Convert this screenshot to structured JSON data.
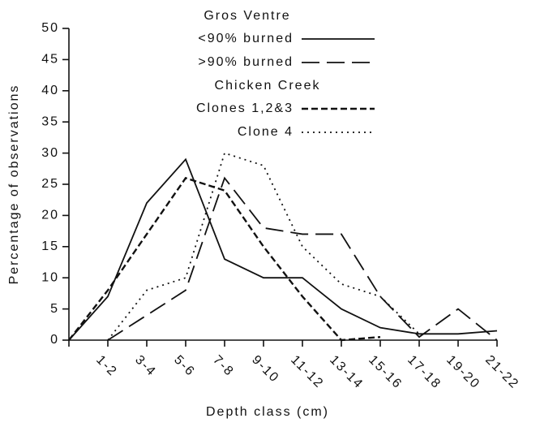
{
  "chart_data": {
    "type": "line",
    "xlabel": "Depth class (cm)",
    "ylabel": "Percentage of observations",
    "categories": [
      null,
      "1-2",
      "3-4",
      "5-6",
      "7-8",
      "9-10",
      "11-12",
      "13-14",
      "15-16",
      "17-18",
      "19-20",
      "21-22"
    ],
    "ylim": [
      0,
      50
    ],
    "yticks": [
      0,
      5,
      10,
      15,
      20,
      25,
      30,
      35,
      40,
      45,
      50
    ],
    "legend_titles": [
      "Gros Ventre",
      "Chicken Creek"
    ],
    "series": [
      {
        "name": "<90% burned",
        "color": "#111111",
        "dash": "solid",
        "group": 0,
        "values": [
          0,
          7,
          22,
          29,
          13,
          10,
          10,
          5,
          2,
          1,
          1,
          1.5
        ]
      },
      {
        "name": ">90% burned",
        "color": "#111111",
        "dash": "long",
        "group": 0,
        "values": [
          null,
          0,
          4,
          8,
          26,
          18,
          17,
          17,
          7,
          0.5,
          5,
          0
        ]
      },
      {
        "name": "Clones 1,2&3",
        "color": "#111111",
        "dash": "short",
        "group": 1,
        "values": [
          0,
          8,
          17,
          26,
          24,
          15,
          7,
          0,
          0.5,
          null,
          null,
          null
        ]
      },
      {
        "name": "Clone 4",
        "color": "#111111",
        "dash": "dotted",
        "group": 1,
        "values": [
          null,
          0,
          8,
          10,
          30,
          28,
          15,
          9,
          7,
          1,
          null,
          null
        ]
      }
    ]
  }
}
